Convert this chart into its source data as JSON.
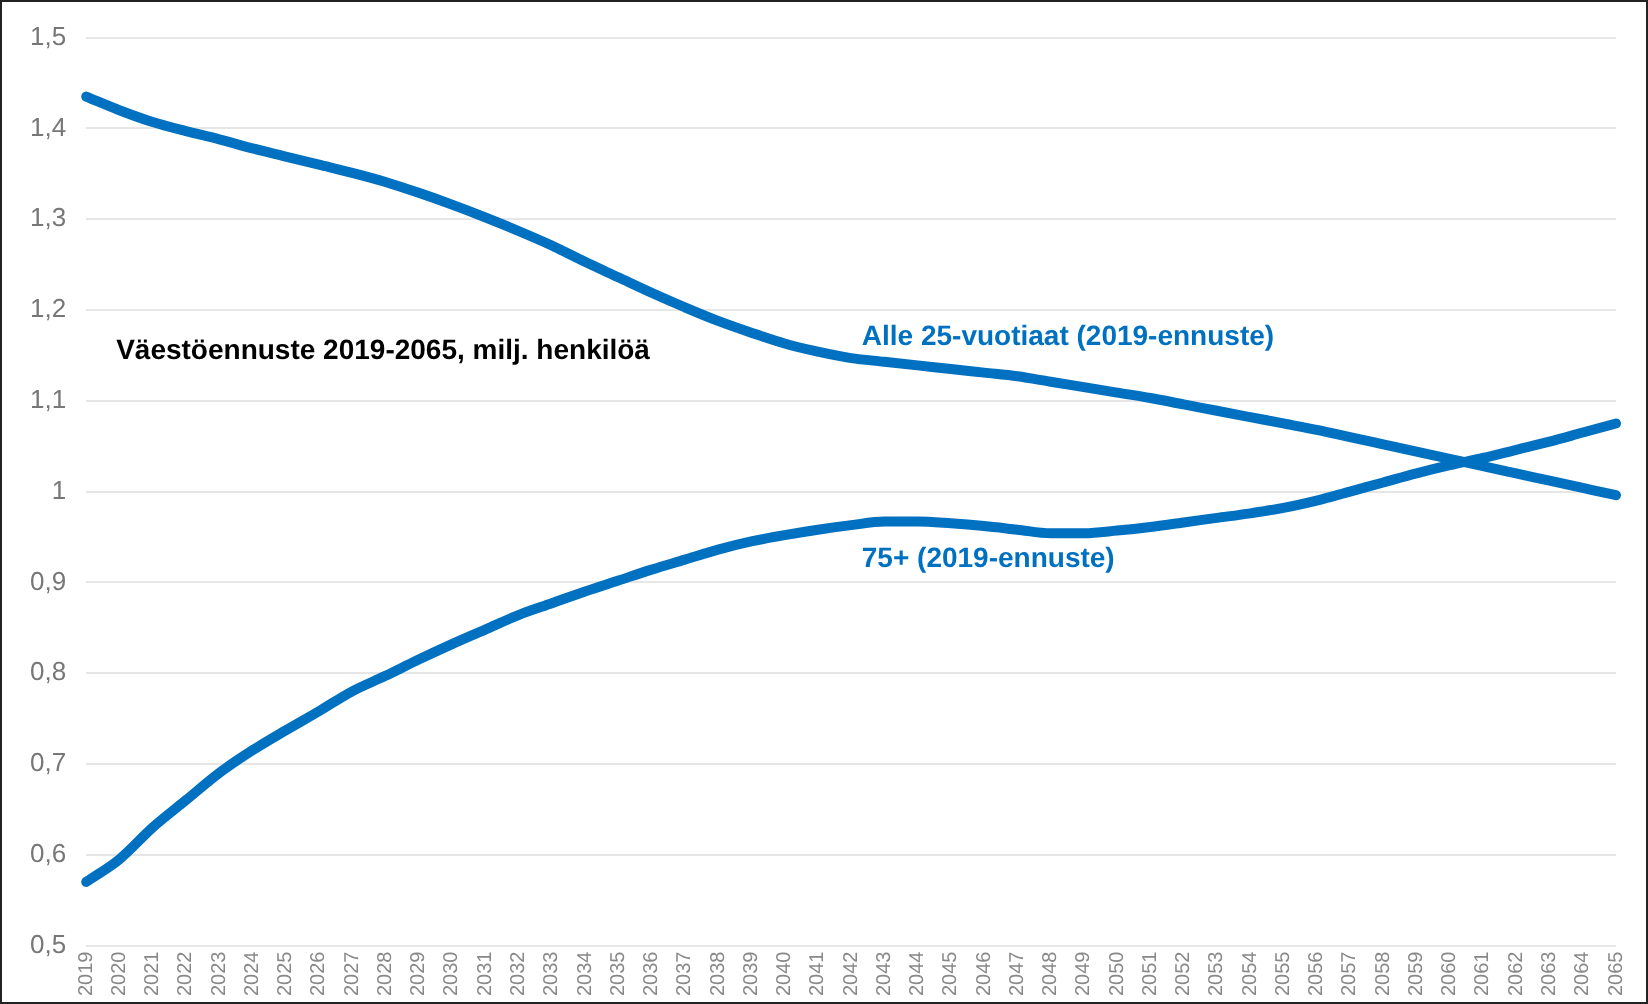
{
  "chart_data": {
    "type": "line",
    "title": "Väestöennuste 2019-2065, milj. henkilöä",
    "categories": [
      "2019",
      "2020",
      "2021",
      "2022",
      "2023",
      "2024",
      "2025",
      "2026",
      "2027",
      "2028",
      "2029",
      "2030",
      "2031",
      "2032",
      "2033",
      "2034",
      "2035",
      "2036",
      "2037",
      "2038",
      "2039",
      "2040",
      "2041",
      "2042",
      "2043",
      "2044",
      "2045",
      "2046",
      "2047",
      "2048",
      "2049",
      "2050",
      "2051",
      "2052",
      "2053",
      "2054",
      "2055",
      "2056",
      "2057",
      "2058",
      "2059",
      "2060",
      "2061",
      "2062",
      "2063",
      "2064",
      "2065"
    ],
    "series": [
      {
        "name": "Alle 25-vuotiaat (2019-ennuste)",
        "color": "#0070c0",
        "values": [
          1.435,
          1.42,
          1.407,
          1.397,
          1.388,
          1.378,
          1.369,
          1.36,
          1.351,
          1.341,
          1.329,
          1.316,
          1.302,
          1.287,
          1.271,
          1.253,
          1.236,
          1.219,
          1.203,
          1.188,
          1.175,
          1.163,
          1.154,
          1.147,
          1.143,
          1.139,
          1.135,
          1.131,
          1.127,
          1.121,
          1.115,
          1.109,
          1.103,
          1.096,
          1.089,
          1.082,
          1.075,
          1.068,
          1.06,
          1.052,
          1.044,
          1.036,
          1.028,
          1.02,
          1.012,
          1.004,
          0.996
        ]
      },
      {
        "name": "75+ (2019-ennuste)",
        "color": "#0070c0",
        "values": [
          0.57,
          0.595,
          0.63,
          0.66,
          0.69,
          0.715,
          0.737,
          0.758,
          0.78,
          0.797,
          0.815,
          0.832,
          0.848,
          0.864,
          0.877,
          0.89,
          0.902,
          0.914,
          0.925,
          0.936,
          0.945,
          0.952,
          0.958,
          0.963,
          0.967,
          0.967,
          0.965,
          0.962,
          0.958,
          0.954,
          0.954,
          0.957,
          0.961,
          0.966,
          0.971,
          0.976,
          0.982,
          0.99,
          1.0,
          1.01,
          1.02,
          1.029,
          1.037,
          1.046,
          1.055,
          1.065,
          1.075
        ]
      }
    ],
    "ylim": [
      0.5,
      1.5
    ],
    "yticks": [
      {
        "value": 0.5,
        "label": "0,5"
      },
      {
        "value": 0.6,
        "label": "0,6"
      },
      {
        "value": 0.7,
        "label": "0,7"
      },
      {
        "value": 0.8,
        "label": "0,8"
      },
      {
        "value": 0.9,
        "label": "0,9"
      },
      1,
      {
        "value": 1.1,
        "label": "1,1"
      },
      {
        "value": 1.2,
        "label": "1,2"
      },
      {
        "value": 1.3,
        "label": "1,3"
      },
      {
        "value": 1.4,
        "label": "1,4"
      },
      {
        "value": 1.5,
        "label": "1,5"
      }
    ],
    "grid": "y",
    "legend": false,
    "marker": "none",
    "line_style": "solid"
  }
}
